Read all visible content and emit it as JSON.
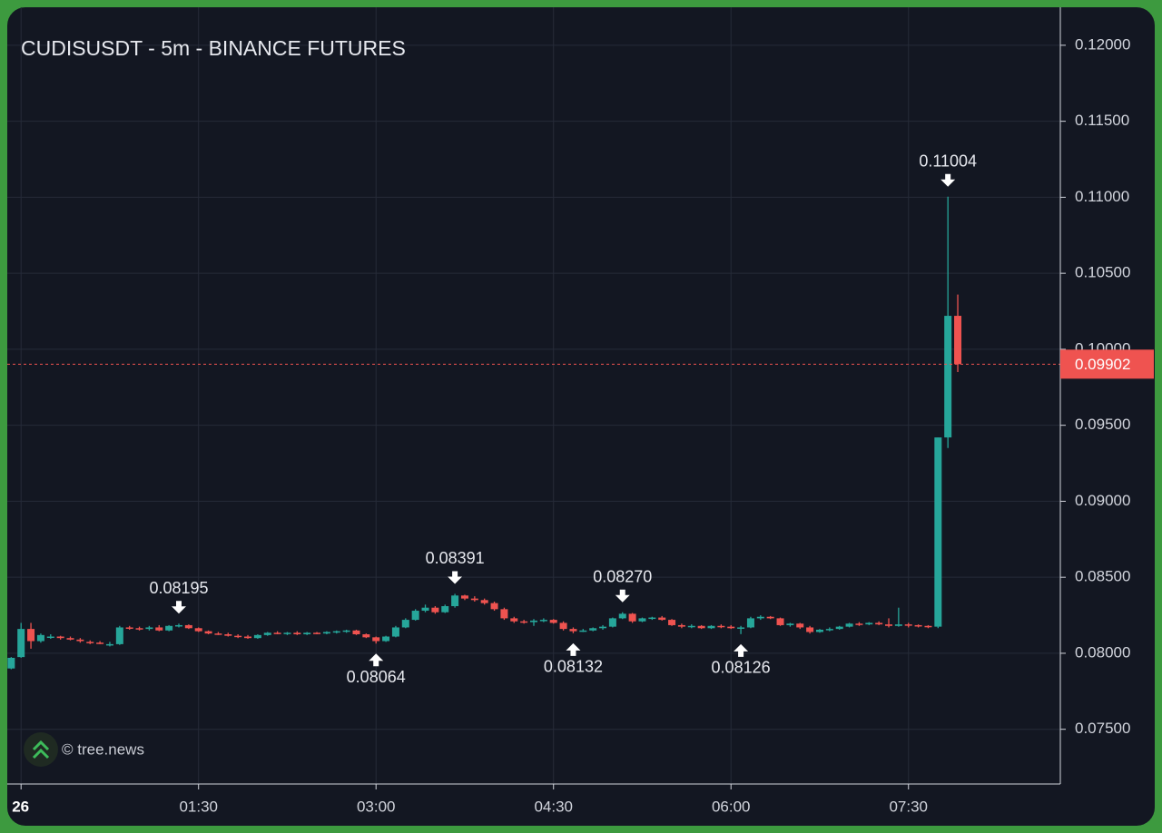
{
  "chart_data": {
    "type": "candlestick",
    "title": "CUDISUSDT - 5m - BINANCE FUTURES",
    "watermark": "© tree.news",
    "up_color": "#26a69a",
    "down_color": "#ef5350",
    "grid": true,
    "xlim": [
      -7,
      527
    ],
    "xticks": [
      {
        "value": 0,
        "label": "26"
      },
      {
        "value": 90,
        "label": "01:30"
      },
      {
        "value": 180,
        "label": "03:00"
      },
      {
        "value": 270,
        "label": "04:30"
      },
      {
        "value": 360,
        "label": "06:00"
      },
      {
        "value": 450,
        "label": "07:30"
      }
    ],
    "ylim": [
      0.0714,
      0.1225
    ],
    "yticks": [
      {
        "value": 0.075,
        "label": "0.07500"
      },
      {
        "value": 0.08,
        "label": "0.08000"
      },
      {
        "value": 0.085,
        "label": "0.08500"
      },
      {
        "value": 0.09,
        "label": "0.09000"
      },
      {
        "value": 0.095,
        "label": "0.09500"
      },
      {
        "value": 0.1,
        "label": "0.10000"
      },
      {
        "value": 0.105,
        "label": "0.10500"
      },
      {
        "value": 0.11,
        "label": "0.11000"
      },
      {
        "value": 0.115,
        "label": "0.11500"
      },
      {
        "value": 0.12,
        "label": "0.12000"
      }
    ],
    "last_price": {
      "value": 0.09902,
      "label": "0.09902"
    },
    "annotations": [
      {
        "x": 80,
        "value": 0.08195,
        "label": "0.08195",
        "kind": "high"
      },
      {
        "x": 180,
        "value": 0.08064,
        "label": "0.08064",
        "kind": "low"
      },
      {
        "x": 220,
        "value": 0.08391,
        "label": "0.08391",
        "kind": "high"
      },
      {
        "x": 280,
        "value": 0.08132,
        "label": "0.08132",
        "kind": "low"
      },
      {
        "x": 305,
        "value": 0.0827,
        "label": "0.08270",
        "kind": "high"
      },
      {
        "x": 365,
        "value": 0.08126,
        "label": "0.08126",
        "kind": "low"
      },
      {
        "x": 470,
        "value": 0.11004,
        "label": "0.11004",
        "kind": "high"
      }
    ],
    "x": [
      -5,
      0,
      5,
      10,
      15,
      20,
      25,
      30,
      35,
      40,
      45,
      50,
      55,
      60,
      65,
      70,
      75,
      80,
      85,
      90,
      95,
      100,
      105,
      110,
      115,
      120,
      125,
      130,
      135,
      140,
      145,
      150,
      155,
      160,
      165,
      170,
      175,
      180,
      185,
      190,
      195,
      200,
      205,
      210,
      215,
      220,
      225,
      230,
      235,
      240,
      245,
      250,
      255,
      260,
      265,
      270,
      275,
      280,
      285,
      290,
      295,
      300,
      305,
      310,
      315,
      320,
      325,
      330,
      335,
      340,
      345,
      350,
      355,
      360,
      365,
      370,
      375,
      380,
      385,
      390,
      395,
      400,
      405,
      410,
      415,
      420,
      425,
      430,
      435,
      440,
      445,
      450,
      455,
      460,
      465,
      470,
      475
    ],
    "open": [
      0.079,
      0.07975,
      0.0816,
      0.0808,
      0.0811,
      0.0811,
      0.081,
      0.0809,
      0.08075,
      0.0807,
      0.0806,
      0.0806,
      0.0817,
      0.08165,
      0.0816,
      0.0817,
      0.0815,
      0.0818,
      0.08185,
      0.08165,
      0.08145,
      0.0813,
      0.08125,
      0.08115,
      0.0811,
      0.081,
      0.0812,
      0.08135,
      0.0813,
      0.08135,
      0.08125,
      0.08135,
      0.0813,
      0.0814,
      0.08145,
      0.0815,
      0.08125,
      0.08105,
      0.0808,
      0.0811,
      0.0817,
      0.0822,
      0.0828,
      0.083,
      0.0827,
      0.0831,
      0.0838,
      0.0836,
      0.0835,
      0.0833,
      0.0829,
      0.0823,
      0.0821,
      0.08205,
      0.08215,
      0.0822,
      0.082,
      0.0816,
      0.08145,
      0.0815,
      0.08165,
      0.08175,
      0.0823,
      0.0826,
      0.0821,
      0.0823,
      0.08235,
      0.0822,
      0.08185,
      0.08175,
      0.0818,
      0.08165,
      0.0818,
      0.08175,
      0.08165,
      0.0817,
      0.0823,
      0.0824,
      0.0823,
      0.08185,
      0.08195,
      0.0817,
      0.0814,
      0.08155,
      0.0816,
      0.08175,
      0.08195,
      0.0819,
      0.082,
      0.0819,
      0.0818,
      0.0819,
      0.08185,
      0.0818,
      0.08175,
      0.0942,
      0.1022
    ],
    "high": [
      0.07975,
      0.082,
      0.082,
      0.0813,
      0.08125,
      0.08115,
      0.0811,
      0.081,
      0.08085,
      0.0808,
      0.08075,
      0.0818,
      0.0818,
      0.08175,
      0.0818,
      0.08185,
      0.08185,
      0.08195,
      0.0819,
      0.0817,
      0.0815,
      0.0814,
      0.08135,
      0.08125,
      0.0812,
      0.08125,
      0.0814,
      0.08145,
      0.0814,
      0.08145,
      0.0814,
      0.0814,
      0.08145,
      0.0815,
      0.08155,
      0.08155,
      0.0813,
      0.0811,
      0.08115,
      0.0818,
      0.0823,
      0.0829,
      0.0832,
      0.0831,
      0.0832,
      0.08391,
      0.08385,
      0.08375,
      0.0836,
      0.0834,
      0.083,
      0.0824,
      0.0822,
      0.08225,
      0.0823,
      0.08225,
      0.0821,
      0.0817,
      0.0816,
      0.0817,
      0.08185,
      0.08235,
      0.0827,
      0.08265,
      0.08235,
      0.0824,
      0.08245,
      0.08225,
      0.08195,
      0.0819,
      0.08185,
      0.08185,
      0.0819,
      0.08185,
      0.0818,
      0.0824,
      0.0825,
      0.08245,
      0.08235,
      0.082,
      0.082,
      0.0818,
      0.0816,
      0.0817,
      0.0818,
      0.082,
      0.08205,
      0.08205,
      0.0821,
      0.0823,
      0.083,
      0.082,
      0.0819,
      0.08185,
      0.0942,
      0.11004,
      0.1036
    ],
    "low": [
      0.07895,
      0.0797,
      0.0803,
      0.0807,
      0.08095,
      0.0809,
      0.08085,
      0.0807,
      0.0806,
      0.0806,
      0.08045,
      0.08055,
      0.08155,
      0.0815,
      0.0815,
      0.08145,
      0.08145,
      0.0817,
      0.0816,
      0.0814,
      0.08125,
      0.0812,
      0.0811,
      0.081,
      0.08095,
      0.08095,
      0.08115,
      0.08125,
      0.0812,
      0.0812,
      0.0812,
      0.08125,
      0.08125,
      0.0813,
      0.08135,
      0.0812,
      0.081,
      0.08064,
      0.08075,
      0.08105,
      0.08165,
      0.08215,
      0.0827,
      0.0826,
      0.08265,
      0.083,
      0.0835,
      0.0834,
      0.0832,
      0.0828,
      0.0822,
      0.082,
      0.08195,
      0.0818,
      0.08205,
      0.08195,
      0.0815,
      0.08132,
      0.0814,
      0.08145,
      0.08155,
      0.0817,
      0.08225,
      0.082,
      0.08205,
      0.0822,
      0.08215,
      0.0818,
      0.08165,
      0.08165,
      0.0816,
      0.0816,
      0.08165,
      0.0816,
      0.08126,
      0.08165,
      0.0822,
      0.08225,
      0.0818,
      0.08175,
      0.0816,
      0.0813,
      0.08135,
      0.08145,
      0.08155,
      0.0817,
      0.0818,
      0.08185,
      0.08185,
      0.0817,
      0.08175,
      0.0817,
      0.0817,
      0.08165,
      0.08165,
      0.0935,
      0.0985
    ],
    "close": [
      0.0797,
      0.0816,
      0.0808,
      0.0812,
      0.0811,
      0.081,
      0.0809,
      0.0808,
      0.0807,
      0.08065,
      0.0806,
      0.0817,
      0.08165,
      0.0816,
      0.0817,
      0.0815,
      0.0818,
      0.08185,
      0.08165,
      0.08145,
      0.0813,
      0.08125,
      0.08115,
      0.0811,
      0.081,
      0.0812,
      0.08135,
      0.0813,
      0.08135,
      0.08125,
      0.08135,
      0.0813,
      0.0814,
      0.08145,
      0.0815,
      0.08125,
      0.08105,
      0.0808,
      0.0811,
      0.0817,
      0.0822,
      0.0828,
      0.083,
      0.0827,
      0.0831,
      0.0838,
      0.0836,
      0.0835,
      0.0833,
      0.0829,
      0.0823,
      0.0821,
      0.08205,
      0.08215,
      0.0822,
      0.082,
      0.0816,
      0.08145,
      0.0815,
      0.08165,
      0.08175,
      0.0823,
      0.0826,
      0.0821,
      0.0823,
      0.08235,
      0.0822,
      0.08185,
      0.08175,
      0.0818,
      0.08165,
      0.0818,
      0.08175,
      0.08165,
      0.0817,
      0.0823,
      0.0824,
      0.0823,
      0.08185,
      0.08195,
      0.0817,
      0.0814,
      0.08155,
      0.0816,
      0.08175,
      0.08195,
      0.0819,
      0.082,
      0.0819,
      0.0818,
      0.0819,
      0.08185,
      0.0818,
      0.08175,
      0.0942,
      0.1022,
      0.09902
    ]
  }
}
